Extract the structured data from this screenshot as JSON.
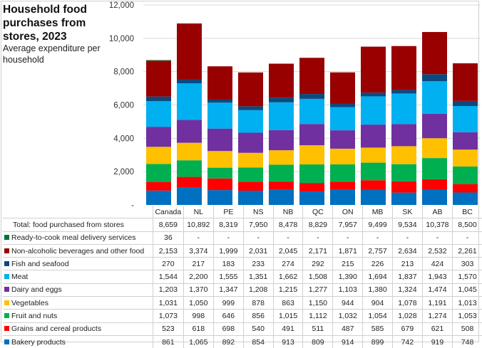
{
  "chart_data": {
    "type": "bar",
    "stacked": true,
    "title": "Household food purchases from stores, 2023",
    "subtitle": "Average expenditure per household",
    "xlabel": "",
    "ylabel": "",
    "ylim": [
      0,
      12000
    ],
    "yticks": [
      0,
      2000,
      4000,
      6000,
      8000,
      10000,
      12000
    ],
    "ytick_labels": [
      "-",
      "2,000",
      "4,000",
      "6,000",
      "8,000",
      "10,000",
      "12,000"
    ],
    "grid": true,
    "legend": "data-table-below",
    "categories": [
      "Canada",
      "NL",
      "PE",
      "NS",
      "NB",
      "QC",
      "ON",
      "MB",
      "SK",
      "AB",
      "BC"
    ],
    "totals_label": "Total: food purchased from stores",
    "totals": [
      8659,
      10892,
      8319,
      7950,
      8478,
      8829,
      7957,
      9499,
      9534,
      10378,
      8500
    ],
    "totals_display": [
      "8,659",
      "10,892",
      "8,319",
      "7,950",
      "8,478",
      "8,829",
      "7,957",
      "9,499",
      "9,534",
      "10,378",
      "8,500"
    ],
    "series": [
      {
        "name": "Bakery products",
        "color": "#0070c0",
        "values": [
          861,
          1065,
          892,
          854,
          913,
          809,
          914,
          899,
          742,
          919,
          748
        ],
        "display": [
          "861",
          "1,065",
          "892",
          "854",
          "913",
          "809",
          "914",
          "899",
          "742",
          "919",
          "748"
        ]
      },
      {
        "name": "Grains and cereal products",
        "color": "#ff0000",
        "values": [
          523,
          618,
          698,
          540,
          491,
          511,
          487,
          585,
          679,
          621,
          508
        ],
        "display": [
          "523",
          "618",
          "698",
          "540",
          "491",
          "511",
          "487",
          "585",
          "679",
          "621",
          "508"
        ]
      },
      {
        "name": "Fruit and nuts",
        "color": "#00b050",
        "values": [
          1073,
          998,
          646,
          856,
          1015,
          1112,
          1032,
          1054,
          1028,
          1274,
          1053
        ],
        "display": [
          "1,073",
          "998",
          "646",
          "856",
          "1,015",
          "1,112",
          "1,032",
          "1,054",
          "1,028",
          "1,274",
          "1,053"
        ]
      },
      {
        "name": "Vegetables",
        "color": "#ffc000",
        "values": [
          1031,
          1050,
          999,
          878,
          863,
          1150,
          944,
          904,
          1078,
          1191,
          1013
        ],
        "display": [
          "1,031",
          "1,050",
          "999",
          "878",
          "863",
          "1,150",
          "944",
          "904",
          "1,078",
          "1,191",
          "1,013"
        ]
      },
      {
        "name": "Dairy and eggs",
        "color": "#7030a0",
        "values": [
          1203,
          1370,
          1347,
          1208,
          1215,
          1277,
          1103,
          1380,
          1324,
          1474,
          1045
        ],
        "display": [
          "1,203",
          "1,370",
          "1,347",
          "1,208",
          "1,215",
          "1,277",
          "1,103",
          "1,380",
          "1,324",
          "1,474",
          "1,045"
        ]
      },
      {
        "name": "Meat",
        "color": "#00b0f0",
        "values": [
          1544,
          2200,
          1555,
          1351,
          1662,
          1508,
          1390,
          1694,
          1837,
          1943,
          1570
        ],
        "display": [
          "1,544",
          "2,200",
          "1,555",
          "1,351",
          "1,662",
          "1,508",
          "1,390",
          "1,694",
          "1,837",
          "1,943",
          "1,570"
        ]
      },
      {
        "name": "Fish and seafood",
        "color": "#0b4a7f",
        "values": [
          270,
          217,
          183,
          233,
          274,
          292,
          215,
          226,
          213,
          424,
          303
        ],
        "display": [
          "270",
          "217",
          "183",
          "233",
          "274",
          "292",
          "215",
          "226",
          "213",
          "424",
          "303"
        ]
      },
      {
        "name": "Non-alcoholic beverages and other food",
        "color": "#990000",
        "values": [
          2153,
          3374,
          1999,
          2031,
          2045,
          2171,
          1871,
          2757,
          2634,
          2532,
          2261
        ],
        "display": [
          "2,153",
          "3,374",
          "1,999",
          "2,031",
          "2,045",
          "2,171",
          "1,871",
          "2,757",
          "2,634",
          "2,532",
          "2,261"
        ]
      },
      {
        "name": "Ready-to-cook meal delivery services",
        "color": "#00703c",
        "values": [
          36,
          null,
          null,
          null,
          null,
          null,
          null,
          null,
          null,
          null,
          null
        ],
        "display": [
          "36",
          "-",
          "-",
          "-",
          "-",
          "-",
          "-",
          "-",
          "-",
          "-",
          "-"
        ]
      }
    ]
  }
}
